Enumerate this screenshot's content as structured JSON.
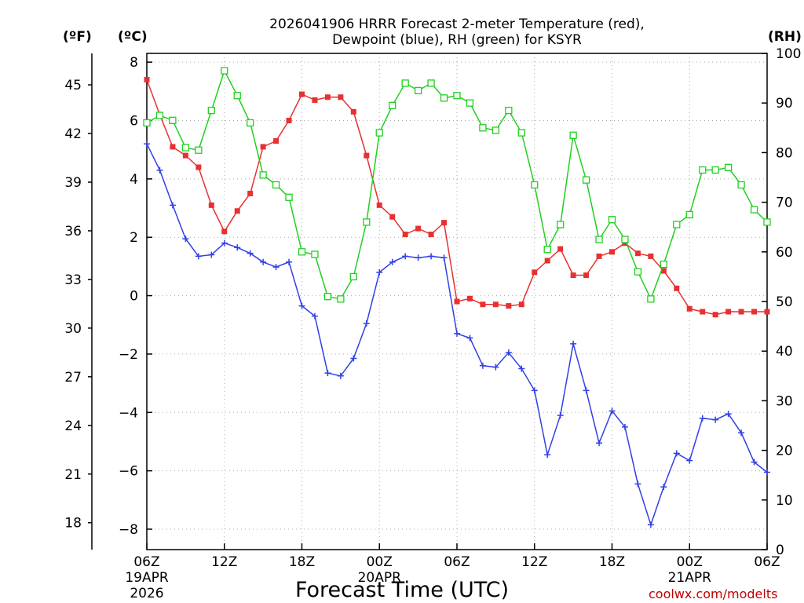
{
  "chart_data": {
    "type": "line",
    "title_line1": "2026041906 HRRR Forecast 2-meter Temperature (red),",
    "title_line2": "Dewpoint (blue), RH (green) for KSYR",
    "xlabel": "Forecast Time (UTC)",
    "credit": "coolwx.com/modelts",
    "left_outer_unit": "(ºF)",
    "left_inner_unit": "(ºC)",
    "right_unit": "(RH)",
    "xlim": [
      0,
      48
    ],
    "ylim_c": [
      -8.7,
      8.3
    ],
    "ylim_rh": [
      0,
      100
    ],
    "x_ticks": [
      {
        "x": 0,
        "label": "06Z",
        "sub1": "19APR",
        "sub2": "2026"
      },
      {
        "x": 6,
        "label": "12Z"
      },
      {
        "x": 12,
        "label": "18Z"
      },
      {
        "x": 18,
        "label": "00Z",
        "sub1": "20APR"
      },
      {
        "x": 24,
        "label": "06Z"
      },
      {
        "x": 30,
        "label": "12Z"
      },
      {
        "x": 36,
        "label": "18Z"
      },
      {
        "x": 42,
        "label": "00Z",
        "sub1": "21APR"
      },
      {
        "x": 48,
        "label": "06Z"
      }
    ],
    "celsius_ticks": [
      8,
      6,
      4,
      2,
      0,
      -2,
      -4,
      -6,
      -8
    ],
    "celsius_tick_labels": [
      "8",
      "6",
      "4",
      "2",
      "0",
      "−2",
      "−4",
      "−6",
      "−8"
    ],
    "fahrenheit_ticks": [
      45,
      42,
      39,
      36,
      33,
      30,
      27,
      24,
      21,
      18
    ],
    "rh_ticks": [
      0,
      10,
      20,
      30,
      40,
      50,
      60,
      70,
      80,
      90,
      100
    ],
    "series": [
      {
        "name": "Temperature",
        "units": "C",
        "color": "#e83030",
        "marker": "filled-square",
        "x": [
          0,
          1,
          2,
          3,
          4,
          5,
          6,
          7,
          8,
          9,
          10,
          11,
          12,
          13,
          14,
          15,
          16,
          17,
          18,
          19,
          20,
          21,
          22,
          23,
          24,
          25,
          26,
          27,
          28,
          29,
          30,
          31,
          32,
          33,
          34,
          35,
          36,
          37,
          38,
          39,
          40,
          41,
          42,
          43,
          44,
          45,
          46,
          47,
          48
        ],
        "values": [
          7.4,
          6.2,
          5.1,
          4.8,
          4.4,
          3.1,
          2.2,
          2.9,
          3.5,
          5.1,
          5.3,
          6.0,
          6.9,
          6.7,
          6.8,
          6.8,
          6.3,
          4.8,
          3.1,
          2.7,
          2.1,
          2.3,
          2.1,
          2.5,
          -0.2,
          -0.1,
          -0.3,
          -0.3,
          -0.35,
          -0.3,
          0.8,
          1.2,
          1.6,
          0.7,
          0.7,
          1.35,
          1.5,
          1.8,
          1.45,
          1.35,
          0.85,
          0.25,
          -0.45,
          -0.55,
          -0.65,
          -0.55,
          -0.55,
          -0.55,
          -0.55
        ]
      },
      {
        "name": "Dewpoint",
        "units": "C",
        "color": "#3040e8",
        "marker": "plus",
        "x": [
          0,
          1,
          2,
          3,
          4,
          5,
          6,
          7,
          8,
          9,
          10,
          11,
          12,
          13,
          14,
          15,
          16,
          17,
          18,
          19,
          20,
          21,
          22,
          23,
          24,
          25,
          26,
          27,
          28,
          29,
          30,
          31,
          32,
          33,
          34,
          35,
          36,
          37,
          38,
          39,
          40,
          41,
          42,
          43,
          44,
          45,
          46,
          47,
          48
        ],
        "values": [
          5.2,
          4.3,
          3.1,
          1.95,
          1.35,
          1.4,
          1.8,
          1.65,
          1.45,
          1.15,
          0.98,
          1.15,
          -0.35,
          -0.7,
          -2.65,
          -2.75,
          -2.15,
          -0.95,
          0.8,
          1.15,
          1.35,
          1.3,
          1.35,
          1.3,
          -1.3,
          -1.45,
          -2.4,
          -2.45,
          -1.95,
          -2.5,
          -3.25,
          -5.45,
          -4.1,
          -1.65,
          -3.25,
          -5.05,
          -3.95,
          -4.5,
          -6.45,
          -7.85,
          -6.55,
          -5.4,
          -5.65,
          -4.2,
          -4.25,
          -4.05,
          -4.7,
          -5.7,
          -6.05
        ]
      },
      {
        "name": "RH",
        "units": "%",
        "color": "#20d020",
        "marker": "open-square",
        "x": [
          0,
          1,
          2,
          3,
          4,
          5,
          6,
          7,
          8,
          9,
          10,
          11,
          12,
          13,
          14,
          15,
          16,
          17,
          18,
          19,
          20,
          21,
          22,
          23,
          24,
          25,
          26,
          27,
          28,
          29,
          30,
          31,
          32,
          33,
          34,
          35,
          36,
          37,
          38,
          39,
          40,
          41,
          42,
          43,
          44,
          45,
          46,
          47,
          48
        ],
        "values": [
          86,
          87.5,
          86.5,
          81,
          80.5,
          88.5,
          96.5,
          91.5,
          86,
          75.5,
          73.5,
          71,
          60,
          59.5,
          51,
          50.5,
          55,
          66,
          84,
          89.5,
          94,
          92.5,
          94,
          91,
          91.5,
          90,
          85,
          84.5,
          88.5,
          84,
          73.5,
          60.5,
          65.5,
          83.5,
          74.5,
          62.5,
          66.5,
          62.5,
          56,
          50.5,
          57.5,
          65.5,
          67.5,
          76.5,
          76.5,
          77,
          73.5,
          68.5,
          66
        ]
      }
    ]
  }
}
